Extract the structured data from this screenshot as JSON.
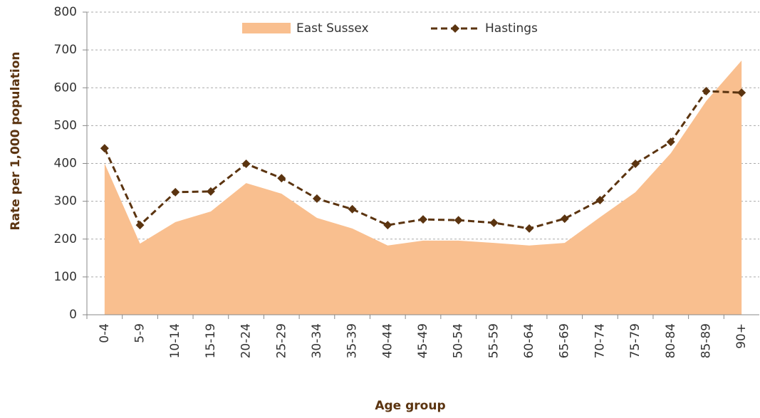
{
  "chart_data": {
    "type": "area_line",
    "ylabel": "Rate per 1,000 population",
    "xlabel": "Age group",
    "categories": [
      "0-4",
      "5-9",
      "10-14",
      "15-19",
      "20-24",
      "25-29",
      "30-34",
      "35-39",
      "40-44",
      "45-49",
      "50-54",
      "55-59",
      "60-64",
      "65-69",
      "70-74",
      "75-79",
      "80-84",
      "85-89",
      "90+"
    ],
    "series": [
      {
        "name": "East Sussex",
        "kind": "area",
        "color": "#f9bf8f",
        "values": [
          400,
          188,
          245,
          273,
          348,
          320,
          256,
          228,
          183,
          196,
          196,
          190,
          183,
          190,
          258,
          324,
          427,
          565,
          672
        ]
      },
      {
        "name": "Hastings",
        "kind": "line",
        "color": "#5b3410",
        "values": [
          440,
          237,
          324,
          326,
          399,
          361,
          307,
          279,
          237,
          252,
          250,
          243,
          228,
          254,
          303,
          399,
          457,
          591,
          587
        ]
      }
    ],
    "ylim": [
      0,
      800
    ],
    "yticks": [
      0,
      100,
      200,
      300,
      400,
      500,
      600,
      700,
      800
    ],
    "grid": true,
    "legend": "top"
  }
}
